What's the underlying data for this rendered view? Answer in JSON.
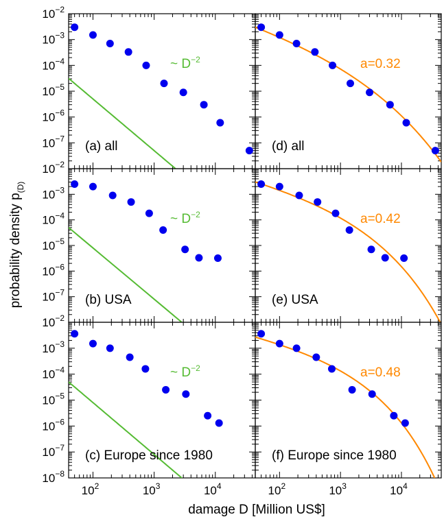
{
  "figure": {
    "ylabel_main": "probability density p",
    "ylabel_sub": "(D)",
    "xlabel": "damage D  [Million US$]",
    "colors": {
      "points": "#0000ee",
      "power_law": "#55bb33",
      "fit": "#ff8800",
      "frame": "#000000"
    }
  },
  "chart_data": [
    {
      "type": "scatter",
      "panel_label": "(a) all",
      "x": [
        50,
        100,
        190,
        380,
        740,
        1450,
        3000,
        6500,
        12000,
        36000
      ],
      "y": [
        0.003,
        0.0015,
        0.0007,
        0.00033,
        0.0001,
        2e-05,
        9e-06,
        3e-06,
        6e-07,
        5e-08
      ],
      "xlim": [
        40,
        45000
      ],
      "ylim": [
        1e-08,
        0.01
      ],
      "xscale": "log",
      "yscale": "log",
      "overlay": {
        "kind": "power-law",
        "label": "~ D",
        "exponent_label": "−2",
        "coef": 0.05,
        "exp": -2
      }
    },
    {
      "type": "scatter",
      "panel_label": "(b) USA",
      "x": [
        50,
        100,
        210,
        420,
        830,
        1400,
        3200,
        5400,
        11000
      ],
      "y": [
        0.0025,
        0.002,
        0.0009,
        0.0005,
        0.00018,
        4e-05,
        7e-06,
        3.3e-06,
        3.2e-06
      ],
      "xlim": [
        40,
        45000
      ],
      "ylim": [
        1e-08,
        0.01
      ],
      "xscale": "log",
      "yscale": "log",
      "overlay": {
        "kind": "power-law",
        "label": "~ D",
        "exponent_label": "−2",
        "coef": 0.08,
        "exp": -2
      }
    },
    {
      "type": "scatter",
      "panel_label": "(c) Europe since 1980",
      "x": [
        50,
        100,
        190,
        400,
        720,
        1550,
        3300,
        7500,
        11500
      ],
      "y": [
        0.0036,
        0.0015,
        0.001,
        0.00045,
        0.00016,
        2.5e-05,
        1.7e-05,
        2.5e-06,
        1.3e-06
      ],
      "xlim": [
        40,
        45000
      ],
      "ylim": [
        1e-08,
        0.01
      ],
      "xscale": "log",
      "yscale": "log",
      "overlay": {
        "kind": "power-law",
        "label": "~ D",
        "exponent_label": "−2",
        "coef": 0.08,
        "exp": -2
      }
    },
    {
      "type": "scatter",
      "panel_label": "(d) all",
      "x": [
        50,
        100,
        190,
        380,
        740,
        1450,
        3000,
        6500,
        12000,
        36000
      ],
      "y": [
        0.003,
        0.0015,
        0.0007,
        0.00033,
        0.0001,
        2e-05,
        9e-06,
        3e-06,
        6e-07,
        5e-08
      ],
      "xlim": [
        40,
        45000
      ],
      "ylim": [
        1e-08,
        0.01
      ],
      "xscale": "log",
      "yscale": "log",
      "overlay": {
        "kind": "stretched-exponential",
        "label": "a=0.32",
        "a": 0.32
      }
    },
    {
      "type": "scatter",
      "panel_label": "(e) USA",
      "x": [
        50,
        100,
        210,
        420,
        830,
        1400,
        3200,
        5400,
        11000
      ],
      "y": [
        0.0025,
        0.002,
        0.0009,
        0.0005,
        0.00018,
        4e-05,
        7e-06,
        3.3e-06,
        3.2e-06
      ],
      "xlim": [
        40,
        45000
      ],
      "ylim": [
        1e-08,
        0.01
      ],
      "xscale": "log",
      "yscale": "log",
      "overlay": {
        "kind": "stretched-exponential",
        "label": "a=0.42",
        "a": 0.42
      }
    },
    {
      "type": "scatter",
      "panel_label": "(f) Europe since 1980",
      "x": [
        50,
        100,
        190,
        400,
        720,
        1550,
        3300,
        7500,
        11500
      ],
      "y": [
        0.0036,
        0.0015,
        0.001,
        0.00045,
        0.00016,
        2.5e-05,
        1.7e-05,
        2.5e-06,
        1.3e-06
      ],
      "xlim": [
        40,
        45000
      ],
      "ylim": [
        1e-08,
        0.01
      ],
      "xscale": "log",
      "yscale": "log",
      "overlay": {
        "kind": "stretched-exponential",
        "label": "a=0.48",
        "a": 0.48
      }
    }
  ]
}
